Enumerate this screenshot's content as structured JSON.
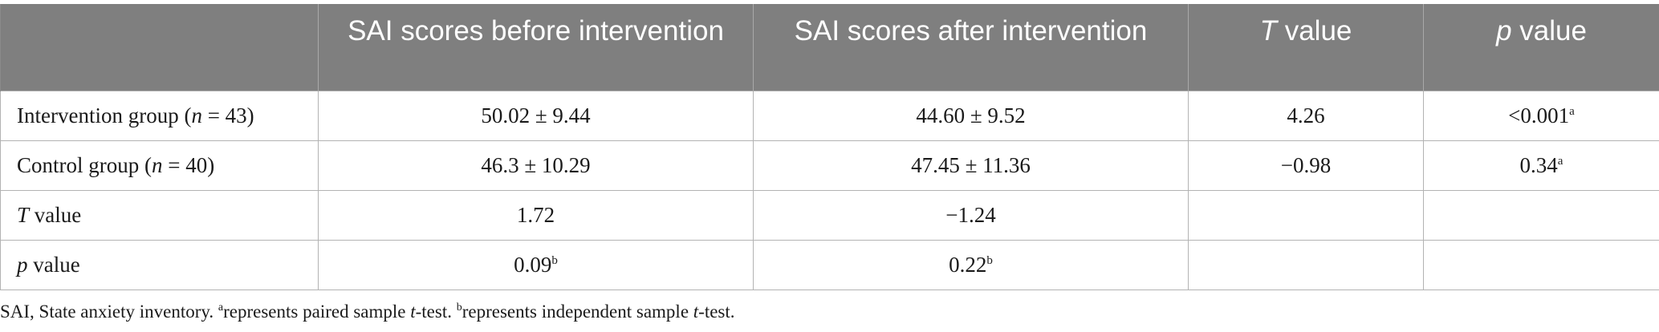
{
  "table": {
    "headers": [
      {
        "text": "",
        "italic": "",
        "rest": ""
      },
      {
        "text": "SAI scores before intervention"
      },
      {
        "text": "SAI scores after intervention"
      },
      {
        "italic": "T",
        "rest": " value"
      },
      {
        "italic": "p",
        "rest": " value"
      }
    ],
    "rows": [
      {
        "label_pre": "Intervention group (",
        "label_italic": "n",
        "label_post": " = 43)",
        "cells": [
          {
            "value": "50.02 ± 9.44",
            "sup": ""
          },
          {
            "value": "44.60 ± 9.52",
            "sup": ""
          },
          {
            "value": "4.26",
            "sup": ""
          },
          {
            "value": "<0.001",
            "sup": "a"
          }
        ]
      },
      {
        "label_pre": "Control group (",
        "label_italic": "n",
        "label_post": " = 40)",
        "cells": [
          {
            "value": "46.3 ± 10.29",
            "sup": ""
          },
          {
            "value": "47.45 ± 11.36",
            "sup": ""
          },
          {
            "value": "−0.98",
            "sup": ""
          },
          {
            "value": "0.34",
            "sup": "a"
          }
        ]
      },
      {
        "label_pre": "",
        "label_italic": "T",
        "label_post": " value",
        "cells": [
          {
            "value": "1.72",
            "sup": ""
          },
          {
            "value": "−1.24",
            "sup": ""
          },
          {
            "value": "",
            "sup": ""
          },
          {
            "value": "",
            "sup": ""
          }
        ]
      },
      {
        "label_pre": "",
        "label_italic": "p",
        "label_post": " value",
        "cells": [
          {
            "value": "0.09",
            "sup": "b"
          },
          {
            "value": "0.22",
            "sup": "b"
          },
          {
            "value": "",
            "sup": ""
          },
          {
            "value": "",
            "sup": ""
          }
        ]
      }
    ]
  },
  "footnote": {
    "part1": "SAI, State anxiety inventory. ",
    "sup_a": "a",
    "part2": "represents paired sample ",
    "t1": "t",
    "part3": "-test. ",
    "sup_b": "b",
    "part4": "represents independent sample ",
    "t2": "t",
    "part5": "-test."
  }
}
